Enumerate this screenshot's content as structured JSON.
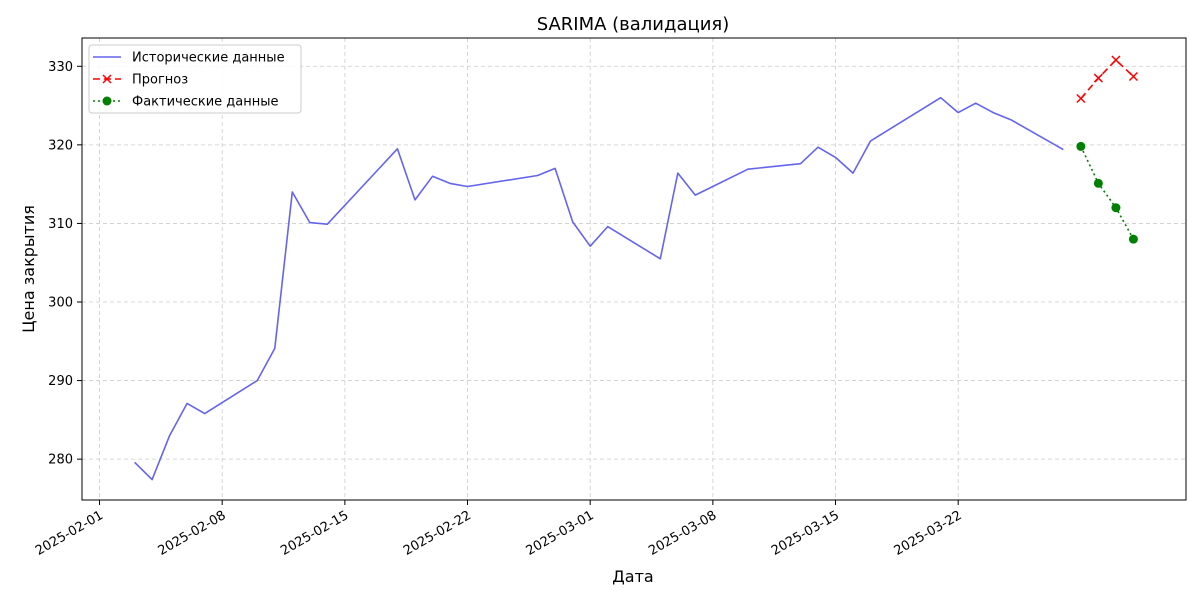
{
  "chart_data": {
    "type": "line",
    "title": "SARIMA (валидация)",
    "xlabel": "Дата",
    "ylabel": "Цена закрытия",
    "grid": true,
    "legend_position": "top-left",
    "xlim": [
      "2025-01-31",
      "2025-04-04"
    ],
    "ylim": [
      274.8,
      333.6
    ],
    "x_ticks": [
      "2025-02-01",
      "2025-02-08",
      "2025-02-15",
      "2025-02-22",
      "2025-03-01",
      "2025-03-08",
      "2025-03-15",
      "2025-03-22"
    ],
    "y_ticks": [
      280,
      290,
      300,
      310,
      320,
      330
    ],
    "series": [
      {
        "name": "Исторические данные",
        "color": "#6464ee",
        "style": "solid",
        "marker": "none",
        "points": [
          [
            "2025-02-03",
            279.6
          ],
          [
            "2025-02-04",
            277.4
          ],
          [
            "2025-02-05",
            283.0
          ],
          [
            "2025-02-06",
            287.1
          ],
          [
            "2025-02-07",
            285.8
          ],
          [
            "2025-02-10",
            290.0
          ],
          [
            "2025-02-11",
            294.1
          ],
          [
            "2025-02-12",
            314.0
          ],
          [
            "2025-02-13",
            310.1
          ],
          [
            "2025-02-14",
            309.9
          ],
          [
            "2025-02-18",
            319.5
          ],
          [
            "2025-02-19",
            313.0
          ],
          [
            "2025-02-20",
            316.0
          ],
          [
            "2025-02-21",
            315.1
          ],
          [
            "2025-02-22",
            314.7
          ],
          [
            "2025-02-26",
            316.1
          ],
          [
            "2025-02-27",
            317.0
          ],
          [
            "2025-02-28",
            310.2
          ],
          [
            "2025-03-01",
            307.1
          ],
          [
            "2025-03-02",
            309.6
          ],
          [
            "2025-03-05",
            305.5
          ],
          [
            "2025-03-06",
            316.4
          ],
          [
            "2025-03-07",
            313.6
          ],
          [
            "2025-03-10",
            316.9
          ],
          [
            "2025-03-13",
            317.6
          ],
          [
            "2025-03-14",
            319.7
          ],
          [
            "2025-03-15",
            318.4
          ],
          [
            "2025-03-16",
            316.4
          ],
          [
            "2025-03-17",
            320.5
          ],
          [
            "2025-03-21",
            326.0
          ],
          [
            "2025-03-22",
            324.1
          ],
          [
            "2025-03-23",
            325.3
          ],
          [
            "2025-03-24",
            324.1
          ],
          [
            "2025-03-25",
            323.2
          ],
          [
            "2025-03-28",
            319.4
          ]
        ]
      },
      {
        "name": "Прогноз",
        "color": "#ff0000",
        "style": "dashed",
        "marker": "x",
        "points": [
          [
            "2025-03-29",
            325.9
          ],
          [
            "2025-03-30",
            328.5
          ],
          [
            "2025-03-31",
            330.8
          ],
          [
            "2025-04-01",
            328.7
          ]
        ]
      },
      {
        "name": "Фактические данные",
        "color": "#008000",
        "style": "dotted",
        "marker": "circle",
        "points": [
          [
            "2025-03-29",
            319.8
          ],
          [
            "2025-03-30",
            315.1
          ],
          [
            "2025-03-31",
            312.0
          ],
          [
            "2025-04-01",
            308.0
          ]
        ]
      }
    ]
  }
}
